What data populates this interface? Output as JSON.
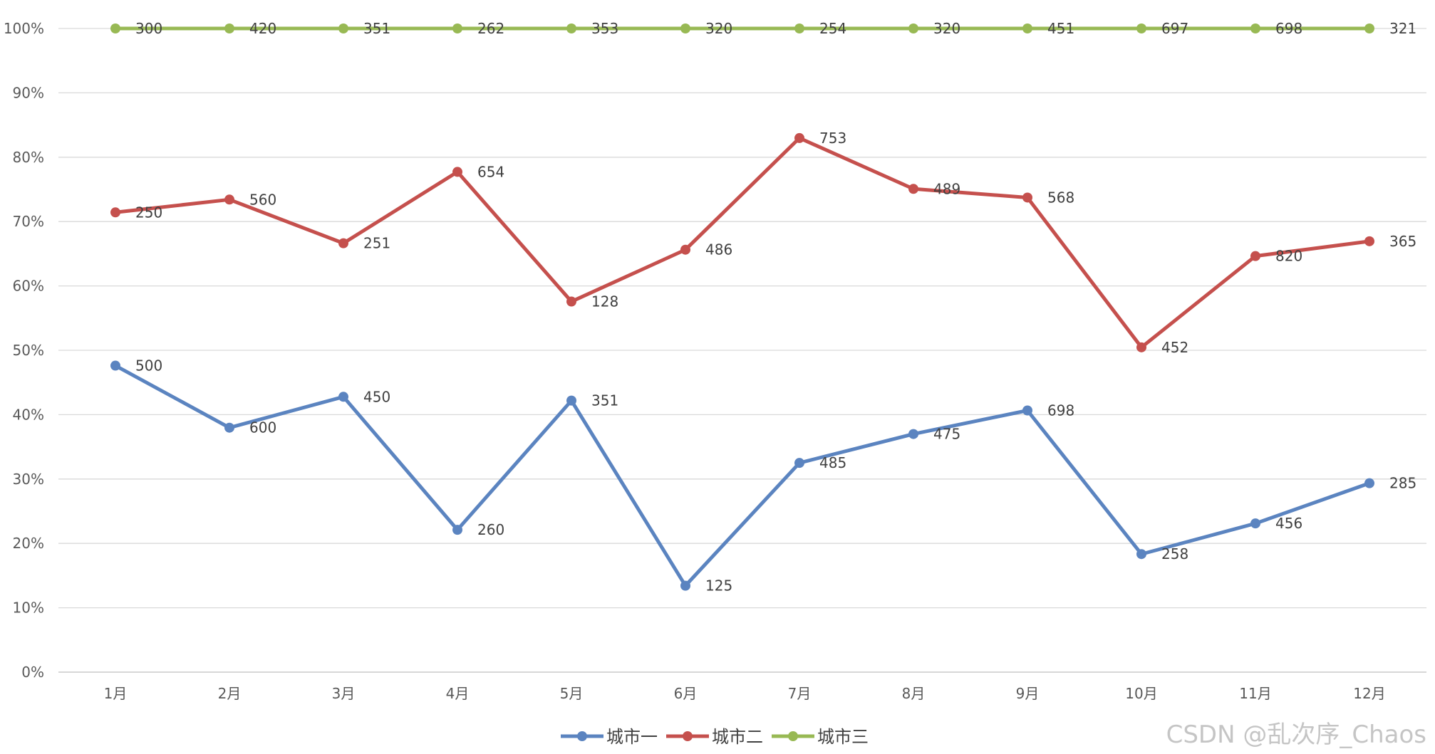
{
  "chart_data": {
    "type": "line",
    "title": "",
    "xlabel": "",
    "ylabel": "",
    "categories": [
      "1月",
      "2月",
      "3月",
      "4月",
      "5月",
      "6月",
      "7月",
      "8月",
      "9月",
      "10月",
      "11月",
      "12月"
    ],
    "y_ticks": [
      "0%",
      "10%",
      "20%",
      "30%",
      "40%",
      "50%",
      "60%",
      "70%",
      "80%",
      "90%",
      "100%"
    ],
    "ylim": [
      0,
      100
    ],
    "stacking": "percent",
    "grid": true,
    "legend_position": "bottom",
    "series": [
      {
        "name": "城市一",
        "color": "#5B84C0",
        "values": [
          500,
          600,
          450,
          260,
          351,
          125,
          485,
          475,
          698,
          258,
          456,
          285
        ]
      },
      {
        "name": "城市二",
        "color": "#C5504D",
        "values": [
          250,
          560,
          251,
          654,
          128,
          486,
          753,
          489,
          568,
          452,
          820,
          365
        ]
      },
      {
        "name": "城市三",
        "color": "#98B954",
        "values": [
          300,
          420,
          351,
          262,
          353,
          320,
          254,
          320,
          451,
          697,
          698,
          321
        ]
      }
    ]
  },
  "watermark": "CSDN @乱次序_Chaos"
}
